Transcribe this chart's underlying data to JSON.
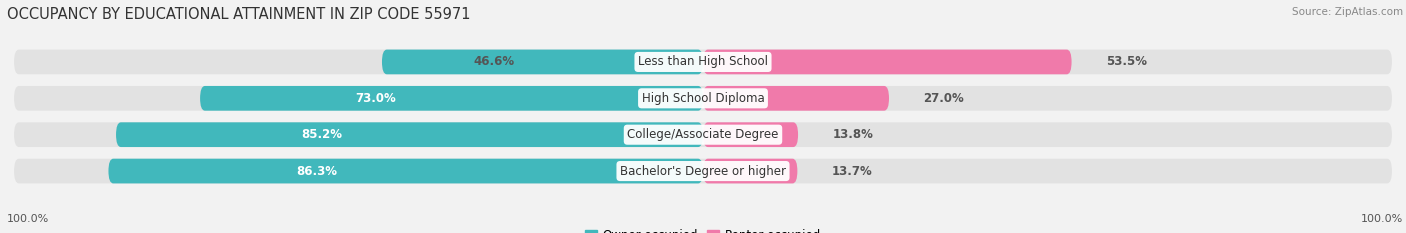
{
  "title": "OCCUPANCY BY EDUCATIONAL ATTAINMENT IN ZIP CODE 55971",
  "source": "Source: ZipAtlas.com",
  "categories": [
    "Less than High School",
    "High School Diploma",
    "College/Associate Degree",
    "Bachelor's Degree or higher"
  ],
  "owner_pct": [
    46.6,
    73.0,
    85.2,
    86.3
  ],
  "renter_pct": [
    53.5,
    27.0,
    13.8,
    13.7
  ],
  "owner_color": "#41b8bc",
  "renter_color": "#f07aaa",
  "background_color": "#f2f2f2",
  "bar_bg_color": "#e2e2e2",
  "title_fontsize": 10.5,
  "label_fontsize": 8.5,
  "pct_fontsize": 8.5,
  "axis_label_fontsize": 8,
  "legend_fontsize": 8.5,
  "bar_height": 0.68,
  "xlim": [
    0,
    100
  ],
  "x_ticks_left": "100.0%",
  "x_ticks_right": "100.0%"
}
